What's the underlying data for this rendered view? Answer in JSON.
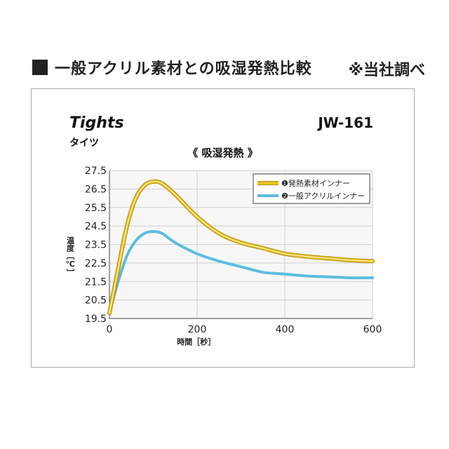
{
  "header": {
    "title": "一般アクリル素材との吸湿発熱比較",
    "note": "※当社調べ"
  },
  "product": {
    "name": "Tights",
    "subtitle": "タイツ",
    "code": "JW-161"
  },
  "chart_data": {
    "type": "line",
    "title": "《 吸湿発熱 》",
    "xlabel": "時間［秒］",
    "ylabel": "温度［℃］",
    "xlim": [
      0,
      600
    ],
    "ylim": [
      19.5,
      27.5
    ],
    "x_ticks": [
      "0",
      "200",
      "400",
      "600"
    ],
    "y_ticks": [
      "27.5",
      "26.5",
      "25.5",
      "24.5",
      "23.5",
      "22.5",
      "21.5",
      "20.5",
      "19.5"
    ],
    "grid": true,
    "legend_position": "top-right",
    "series": [
      {
        "name": "❶発熱素材インナー",
        "color": "#e8c020",
        "x": [
          0,
          20,
          40,
          60,
          80,
          100,
          120,
          150,
          200,
          250,
          300,
          350,
          400,
          450,
          500,
          550,
          600
        ],
        "y": [
          19.8,
          22.2,
          24.5,
          26.0,
          26.7,
          26.9,
          26.8,
          26.2,
          25.0,
          24.1,
          23.6,
          23.3,
          23.0,
          22.85,
          22.75,
          22.65,
          22.6
        ]
      },
      {
        "name": "❷一般アクリルインナー",
        "color": "#5bbde0",
        "x": [
          0,
          20,
          40,
          60,
          80,
          100,
          120,
          150,
          200,
          250,
          300,
          350,
          400,
          450,
          500,
          550,
          600
        ],
        "y": [
          19.8,
          21.5,
          22.9,
          23.7,
          24.1,
          24.2,
          24.1,
          23.6,
          23.0,
          22.6,
          22.3,
          22.0,
          21.9,
          21.8,
          21.75,
          21.7,
          21.7
        ]
      }
    ]
  }
}
